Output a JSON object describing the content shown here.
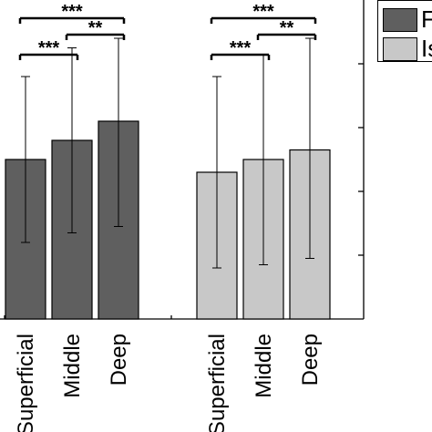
{
  "chart_data": {
    "type": "bar",
    "title": "",
    "xlabel": "",
    "ylabel": "",
    "categories": [
      "Superficial",
      "Middle",
      "Deep"
    ],
    "series": [
      {
        "name": "F",
        "color": "#5f5f5f",
        "values": [
          5.0,
          5.6,
          6.2
        ],
        "err_low": [
          2.6,
          2.9,
          3.3
        ],
        "err_high": [
          2.6,
          2.9,
          2.6
        ]
      },
      {
        "name": "Is",
        "color": "#c8c8c8",
        "values": [
          4.6,
          5.0,
          5.3
        ],
        "err_low": [
          3.0,
          3.3,
          3.4
        ],
        "err_high": [
          3.0,
          3.3,
          3.5
        ]
      }
    ],
    "significance": [
      {
        "series": 0,
        "from": 0,
        "to": 2,
        "label": "***"
      },
      {
        "series": 0,
        "from": 0,
        "to": 1,
        "label": "***"
      },
      {
        "series": 0,
        "from": 1,
        "to": 2,
        "label": "**"
      },
      {
        "series": 1,
        "from": 0,
        "to": 2,
        "label": "***"
      },
      {
        "series": 1,
        "from": 0,
        "to": 1,
        "label": "***"
      },
      {
        "series": 1,
        "from": 1,
        "to": 2,
        "label": "**"
      }
    ],
    "ylim": [
      0,
      10
    ],
    "legend_position": "top-right",
    "grid": false
  }
}
